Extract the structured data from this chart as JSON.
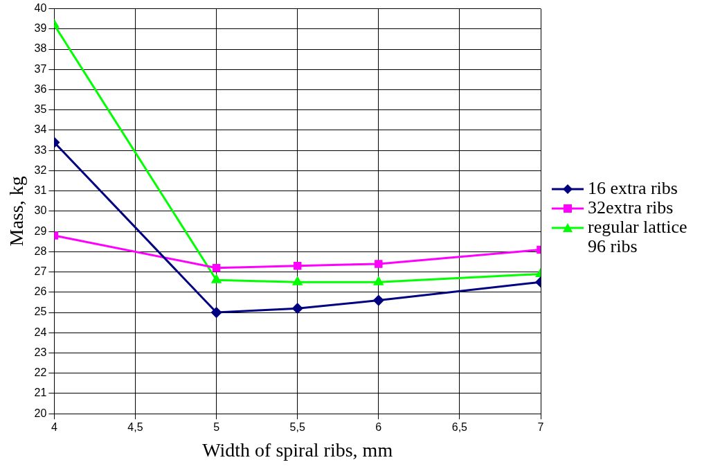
{
  "chart_data": {
    "type": "line",
    "xlabel": "Width of spiral ribs, mm",
    "ylabel": "Mass, kg",
    "x": [
      4,
      5,
      5.5,
      6,
      7
    ],
    "series": [
      {
        "name": "16 extra ribs",
        "color": "#000080",
        "marker": "diamond",
        "values": [
          33.4,
          25.0,
          25.2,
          25.6,
          26.5
        ]
      },
      {
        "name": "32extra ribs",
        "color": "#ff00ff",
        "marker": "square",
        "values": [
          28.8,
          27.2,
          27.3,
          27.4,
          28.1
        ]
      },
      {
        "name": "regular lattice 96 ribs",
        "color": "#00ff00",
        "marker": "triangle",
        "values": [
          39.2,
          26.6,
          26.5,
          26.5,
          26.9
        ]
      }
    ],
    "xlim": [
      4,
      7
    ],
    "xticks": [
      4,
      {
        "value": 4.5,
        "label": "4,5"
      },
      5,
      {
        "value": 5.5,
        "label": "5,5"
      },
      6,
      {
        "value": 6.5,
        "label": "6,5"
      },
      7
    ],
    "ylim": [
      20,
      40
    ],
    "yticks": [
      20,
      21,
      22,
      23,
      24,
      25,
      26,
      27,
      28,
      29,
      30,
      31,
      32,
      33,
      34,
      35,
      36,
      37,
      38,
      39,
      40
    ],
    "grid": true,
    "legend": "right",
    "line_style": "solid"
  }
}
